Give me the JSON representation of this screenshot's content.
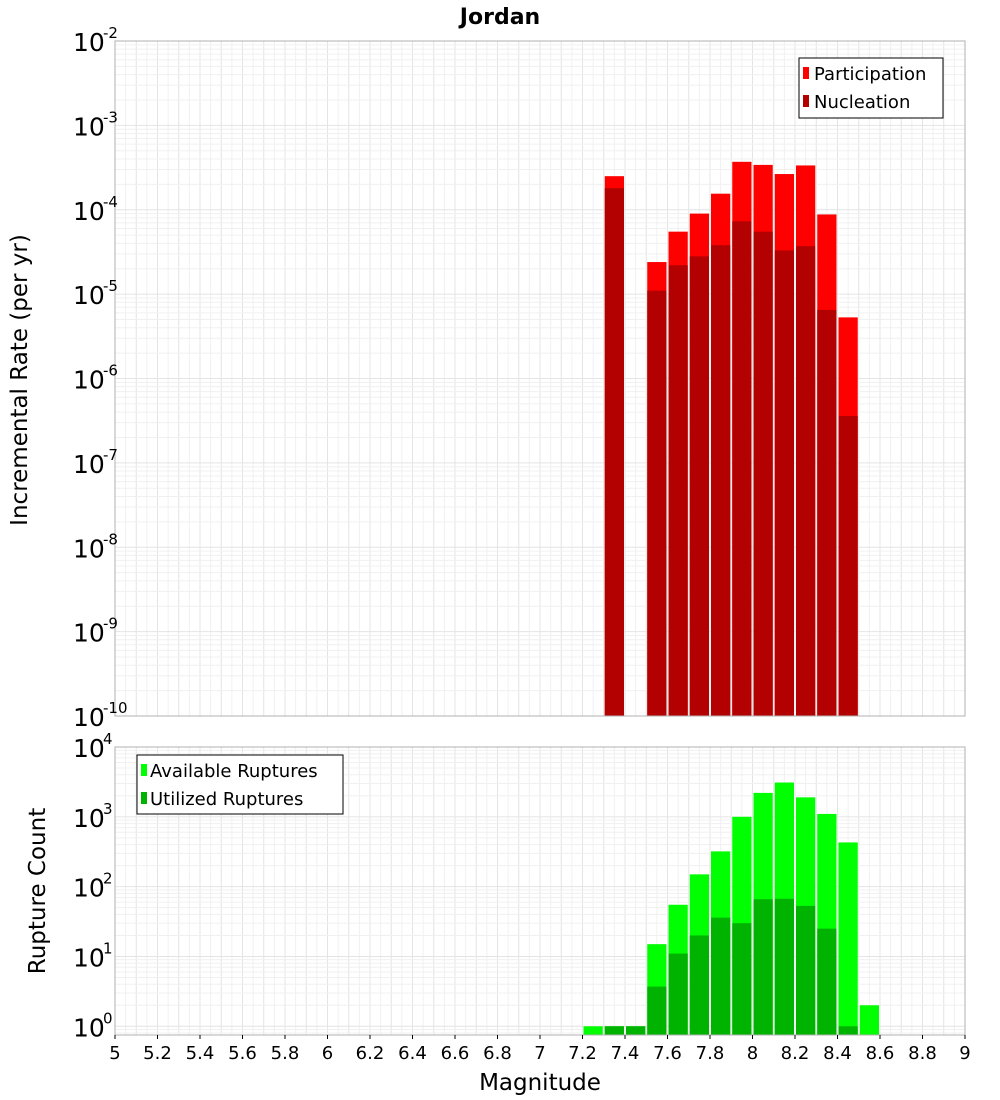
{
  "chart_data": [
    {
      "type": "bar",
      "title": "Jordan",
      "ylabel": "Incremental Rate (per yr)",
      "xlabel": "",
      "yscale": "log",
      "ylim": [
        1e-10,
        0.01
      ],
      "xlim": [
        5.0,
        9.0
      ],
      "yticks": [
        {
          "base": "10",
          "exp": "-2"
        },
        {
          "base": "10",
          "exp": "-3"
        },
        {
          "base": "10",
          "exp": "-4"
        },
        {
          "base": "10",
          "exp": "-5"
        },
        {
          "base": "10",
          "exp": "-6"
        },
        {
          "base": "10",
          "exp": "-7"
        },
        {
          "base": "10",
          "exp": "-8"
        },
        {
          "base": "10",
          "exp": "-9"
        },
        {
          "base": "10",
          "exp": "-10"
        }
      ],
      "legend": {
        "position": "top-right",
        "entries": [
          {
            "label": "Participation",
            "color": "#ff0000"
          },
          {
            "label": "Nucleation",
            "color": "#b30000"
          }
        ]
      },
      "series": [
        {
          "name": "Participation",
          "color": "#ff0000",
          "x": [
            7.35,
            7.55,
            7.65,
            7.75,
            7.85,
            7.95,
            8.05,
            8.15,
            8.25,
            8.35,
            8.45
          ],
          "values": [
            0.00025,
            2.4e-05,
            5.5e-05,
            9e-05,
            0.000155,
            0.00037,
            0.00034,
            0.000265,
            0.000335,
            8.8e-05,
            5.3e-06
          ]
        },
        {
          "name": "Nucleation",
          "color": "#b30000",
          "x": [
            7.35,
            7.55,
            7.65,
            7.75,
            7.85,
            7.95,
            8.05,
            8.15,
            8.25,
            8.35,
            8.45
          ],
          "values": [
            0.00018,
            1.1e-05,
            2.2e-05,
            2.8e-05,
            3.8e-05,
            7.3e-05,
            5.5e-05,
            3.3e-05,
            3.7e-05,
            6.5e-06,
            3.6e-07
          ]
        }
      ]
    },
    {
      "type": "bar",
      "title": "",
      "ylabel": "Rupture Count",
      "xlabel": "Magnitude",
      "yscale": "log",
      "ylim": [
        0.75,
        10000
      ],
      "xlim": [
        5.0,
        9.0
      ],
      "yticks": [
        {
          "base": "10",
          "exp": "4"
        },
        {
          "base": "10",
          "exp": "3"
        },
        {
          "base": "10",
          "exp": "2"
        },
        {
          "base": "10",
          "exp": "1"
        },
        {
          "base": "10",
          "exp": "0"
        }
      ],
      "xticks": [
        "5",
        "5.2",
        "5.4",
        "5.6",
        "5.8",
        "6",
        "6.2",
        "6.4",
        "6.6",
        "6.8",
        "7",
        "7.2",
        "7.4",
        "7.6",
        "7.8",
        "8",
        "8.2",
        "8.4",
        "8.6",
        "8.8",
        "9"
      ],
      "legend": {
        "position": "top-left",
        "entries": [
          {
            "label": "Available Ruptures",
            "color": "#00ff00"
          },
          {
            "label": "Utilized Ruptures",
            "color": "#00b300"
          }
        ]
      },
      "series": [
        {
          "name": "Available Ruptures",
          "color": "#00ff00",
          "x": [
            7.25,
            7.35,
            7.45,
            7.55,
            7.65,
            7.75,
            7.85,
            7.95,
            8.05,
            8.15,
            8.25,
            8.35,
            8.45,
            8.55
          ],
          "values": [
            1,
            1,
            1,
            15,
            55,
            150,
            320,
            1000,
            2200,
            3100,
            1900,
            1100,
            430,
            2
          ]
        },
        {
          "name": "Utilized Ruptures",
          "color": "#00b300",
          "x": [
            7.25,
            7.35,
            7.45,
            7.55,
            7.65,
            7.75,
            7.85,
            7.95,
            8.05,
            8.15,
            8.25,
            8.35,
            8.45,
            8.55
          ],
          "values": [
            0,
            1,
            1,
            3.7,
            11,
            20,
            36,
            30,
            66,
            67,
            53,
            25,
            1,
            0
          ]
        }
      ]
    }
  ]
}
